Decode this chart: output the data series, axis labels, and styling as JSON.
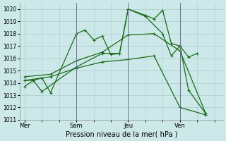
{
  "xlabel": "Pression niveau de la mer( hPa )",
  "ylim": [
    1011,
    1020.5
  ],
  "yticks": [
    1011,
    1012,
    1013,
    1014,
    1015,
    1016,
    1017,
    1018,
    1019,
    1020
  ],
  "bg_color": "#cce8e8",
  "grid_color": "#aacccc",
  "line_color": "#1a6b1a",
  "xtick_labels": [
    "Mer",
    "Sam",
    "Jeu",
    "Ven"
  ],
  "xtick_positions": [
    0,
    3,
    6,
    9
  ],
  "vline_positions": [
    3,
    6,
    9
  ],
  "xlim": [
    -0.3,
    11.5
  ],
  "series": [
    {
      "x": [
        0,
        0.5,
        1.0,
        1.5,
        3.0,
        3.5,
        4.0,
        4.5,
        5.0,
        5.5,
        6.0,
        7.0,
        7.5,
        8.0,
        8.5,
        9.0,
        9.5,
        10.0
      ],
      "y": [
        1013.7,
        1014.2,
        1014.4,
        1013.2,
        1018.0,
        1018.3,
        1017.5,
        1017.8,
        1016.3,
        1016.4,
        1020.0,
        1019.5,
        1019.2,
        1019.9,
        1017.2,
        1017.0,
        1016.1,
        1016.4
      ]
    },
    {
      "x": [
        0,
        0.5,
        1.0,
        3.0,
        4.5,
        5.5,
        6.0,
        7.0,
        8.0,
        8.5,
        9.0,
        9.5,
        10.5
      ],
      "y": [
        1014.2,
        1014.2,
        1013.3,
        1015.3,
        1016.4,
        1016.4,
        1020.0,
        1019.4,
        1018.0,
        1016.2,
        1017.0,
        1013.4,
        1011.5
      ]
    },
    {
      "x": [
        0,
        1.5,
        3.0,
        4.5,
        6.0,
        7.5,
        9.0,
        10.5
      ],
      "y": [
        1014.5,
        1014.7,
        1015.8,
        1016.5,
        1017.9,
        1018.0,
        1016.6,
        1011.5
      ]
    },
    {
      "x": [
        0,
        1.5,
        3.0,
        4.5,
        6.0,
        7.5,
        9.0,
        10.5
      ],
      "y": [
        1014.2,
        1014.5,
        1015.2,
        1015.7,
        1015.9,
        1016.2,
        1012.0,
        1011.4
      ]
    }
  ]
}
